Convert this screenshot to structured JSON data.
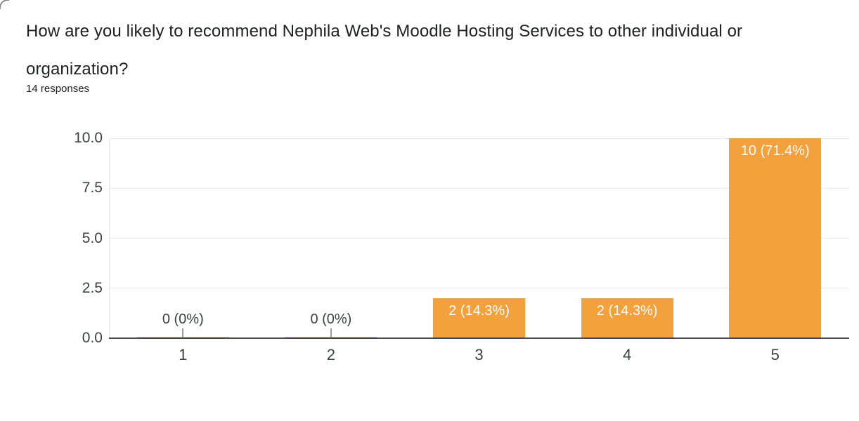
{
  "header": {
    "title": "How are you likely to recommend Nephila Web's Moodle Hosting Services to other individual or organization?",
    "responses_label": "14 responses"
  },
  "chart_data": {
    "type": "bar",
    "title": "How are you likely to recommend Nephila Web's Moodle Hosting Services to other individual or organization?",
    "subtitle": "14 responses",
    "categories": [
      "1",
      "2",
      "3",
      "4",
      "5"
    ],
    "values": [
      0,
      0,
      2,
      2,
      10
    ],
    "bar_labels": [
      "0 (0%)",
      "0 (0%)",
      "2 (14.3%)",
      "2 (14.3%)",
      "10 (71.4%)"
    ],
    "percentages": [
      0,
      0,
      14.3,
      14.3,
      71.4
    ],
    "total_responses": 14,
    "xlabel": "",
    "ylabel": "",
    "ylim": [
      0,
      10
    ],
    "ytick_values": [
      0,
      2.5,
      5,
      7.5,
      10
    ],
    "ytick_labels": [
      "0.0",
      "2.5",
      "5.0",
      "7.5",
      "10.0"
    ],
    "grid": true,
    "legend": "none",
    "colors": {
      "bar": "#f2a13d",
      "annotation_inside": "#ffffff",
      "annotation_outside": "#3c4043",
      "axis_text": "#3c4043",
      "gridline": "#e9e9e9",
      "baseline": "#3a3a3a",
      "title_text": "#202124"
    }
  }
}
